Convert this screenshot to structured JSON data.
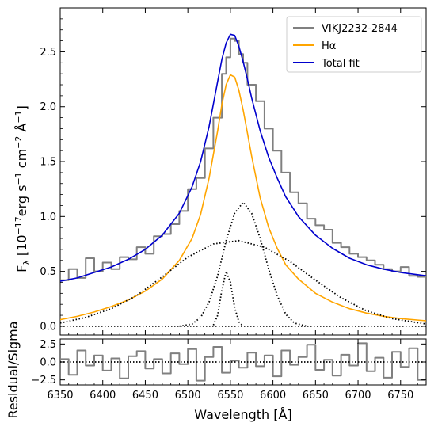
{
  "chart_data": [
    {
      "panel": "main",
      "type": "line",
      "ylabel": "F_λ [10^-17 erg s^-1 cm^-2 Å^-1]",
      "ylabel_parts": {
        "base": "F",
        "sub": "λ",
        "bracket_open": " [10",
        "exp1": "−17",
        "mid1": "erg s",
        "exp2": "−1",
        "mid2": " cm",
        "exp3": "−2",
        "mid3": " Å",
        "exp4": "−1",
        "bracket_close": "]"
      },
      "xlim": [
        6350,
        6780
      ],
      "ylim": [
        -0.08,
        2.9
      ],
      "yticks": [
        0.0,
        0.5,
        1.0,
        1.5,
        2.0,
        2.5
      ],
      "ytick_labels": [
        "0.0",
        "0.5",
        "1.0",
        "1.5",
        "2.0",
        "2.5"
      ],
      "legend_position": "top-right",
      "legend": [
        {
          "label": "VIKJ2232-2844",
          "color": "#808080"
        },
        {
          "label": "Hα",
          "color": "#ffa500"
        },
        {
          "label": "Total fit",
          "color": "#0000cd"
        }
      ],
      "series": [
        {
          "name": "VIKJ2232-2844",
          "style": "step",
          "color": "#808080",
          "x": [
            6350,
            6360,
            6370,
            6380,
            6390,
            6400,
            6410,
            6420,
            6430,
            6440,
            6450,
            6460,
            6470,
            6480,
            6490,
            6500,
            6510,
            6520,
            6530,
            6540,
            6545,
            6550,
            6555,
            6560,
            6565,
            6570,
            6580,
            6590,
            6600,
            6610,
            6620,
            6630,
            6640,
            6650,
            6660,
            6670,
            6680,
            6690,
            6700,
            6710,
            6720,
            6730,
            6740,
            6750,
            6760,
            6770,
            6780
          ],
          "y": [
            0.42,
            0.52,
            0.44,
            0.62,
            0.5,
            0.58,
            0.52,
            0.63,
            0.61,
            0.72,
            0.66,
            0.82,
            0.84,
            0.93,
            1.05,
            1.25,
            1.35,
            1.62,
            1.9,
            2.3,
            2.45,
            2.62,
            2.6,
            2.48,
            2.4,
            2.2,
            2.05,
            1.8,
            1.6,
            1.4,
            1.22,
            1.12,
            0.98,
            0.92,
            0.88,
            0.76,
            0.72,
            0.66,
            0.63,
            0.6,
            0.56,
            0.52,
            0.5,
            0.54,
            0.46,
            0.45,
            0.46
          ]
        },
        {
          "name": "Hα",
          "style": "line",
          "color": "#ffa500",
          "x": [
            6350,
            6370,
            6390,
            6410,
            6430,
            6450,
            6470,
            6490,
            6505,
            6515,
            6525,
            6535,
            6540,
            6545,
            6550,
            6555,
            6560,
            6565,
            6570,
            6575,
            6585,
            6595,
            6605,
            6615,
            6630,
            6650,
            6670,
            6690,
            6710,
            6730,
            6750,
            6780
          ],
          "y": [
            0.06,
            0.09,
            0.13,
            0.18,
            0.24,
            0.32,
            0.43,
            0.6,
            0.8,
            1.02,
            1.35,
            1.78,
            2.02,
            2.2,
            2.29,
            2.27,
            2.15,
            1.97,
            1.76,
            1.55,
            1.17,
            0.9,
            0.71,
            0.56,
            0.43,
            0.3,
            0.22,
            0.16,
            0.12,
            0.09,
            0.07,
            0.05
          ]
        },
        {
          "name": "Total fit",
          "style": "line",
          "color": "#0000cd",
          "x": [
            6350,
            6370,
            6390,
            6410,
            6430,
            6450,
            6470,
            6490,
            6505,
            6515,
            6525,
            6535,
            6540,
            6545,
            6550,
            6555,
            6560,
            6565,
            6570,
            6575,
            6585,
            6595,
            6605,
            6615,
            6630,
            6650,
            6670,
            6690,
            6710,
            6730,
            6750,
            6780
          ],
          "y": [
            0.41,
            0.44,
            0.49,
            0.54,
            0.61,
            0.7,
            0.83,
            1.03,
            1.27,
            1.5,
            1.82,
            2.23,
            2.43,
            2.58,
            2.66,
            2.65,
            2.55,
            2.41,
            2.25,
            2.08,
            1.78,
            1.54,
            1.35,
            1.18,
            1.0,
            0.83,
            0.71,
            0.62,
            0.56,
            0.52,
            0.49,
            0.46
          ]
        },
        {
          "style": "dotted",
          "color": "#000000",
          "x": [
            6530,
            6535,
            6540,
            6545,
            6550,
            6555,
            6560,
            6565
          ],
          "y": [
            0.01,
            0.1,
            0.33,
            0.5,
            0.4,
            0.17,
            0.04,
            0.0
          ]
        },
        {
          "style": "dotted",
          "color": "#000000",
          "x": [
            6490,
            6505,
            6515,
            6525,
            6535,
            6545,
            6555,
            6565,
            6575,
            6585,
            6595,
            6605,
            6615,
            6625,
            6640
          ],
          "y": [
            0.0,
            0.02,
            0.08,
            0.22,
            0.46,
            0.78,
            1.03,
            1.13,
            1.03,
            0.8,
            0.52,
            0.28,
            0.11,
            0.03,
            0.0
          ]
        },
        {
          "style": "dotted",
          "color": "#000000",
          "x": [
            6350,
            6380,
            6410,
            6440,
            6470,
            6500,
            6530,
            6560,
            6590,
            6620,
            6650,
            6680,
            6710,
            6740,
            6780
          ],
          "y": [
            0.03,
            0.08,
            0.16,
            0.28,
            0.45,
            0.63,
            0.75,
            0.78,
            0.72,
            0.59,
            0.42,
            0.26,
            0.14,
            0.07,
            0.02
          ]
        },
        {
          "style": "dotted",
          "color": "#000000",
          "x": [
            6350,
            6780
          ],
          "y": [
            0.0,
            0.0
          ]
        }
      ]
    },
    {
      "panel": "residual",
      "type": "line",
      "xlabel": "Wavelength [Å]",
      "ylabel": "Residual/Sigma",
      "xlim": [
        6350,
        6780
      ],
      "ylim": [
        -3.2,
        3.2
      ],
      "xticks": [
        6350,
        6400,
        6450,
        6500,
        6550,
        6600,
        6650,
        6700,
        6750
      ],
      "xtick_labels": [
        "6350",
        "6400",
        "6450",
        "6500",
        "6550",
        "6600",
        "6650",
        "6700",
        "6750"
      ],
      "yticks": [
        -2.5,
        0.0,
        2.5
      ],
      "ytick_labels": [
        "−2.5",
        "0.0",
        "2.5"
      ],
      "series": [
        {
          "style": "step",
          "color": "#808080",
          "x": [
            6350,
            6360,
            6370,
            6380,
            6390,
            6400,
            6410,
            6420,
            6430,
            6440,
            6450,
            6460,
            6470,
            6480,
            6490,
            6500,
            6510,
            6520,
            6530,
            6540,
            6550,
            6560,
            6570,
            6580,
            6590,
            6600,
            6610,
            6620,
            6630,
            6640,
            6650,
            6660,
            6670,
            6680,
            6690,
            6700,
            6710,
            6720,
            6730,
            6740,
            6750,
            6760,
            6770,
            6780
          ],
          "y": [
            0.4,
            -1.8,
            1.6,
            -0.5,
            0.9,
            -1.2,
            0.5,
            -2.3,
            0.8,
            1.5,
            -0.9,
            0.4,
            -1.6,
            1.2,
            -0.3,
            1.8,
            -2.6,
            0.7,
            2.1,
            -1.5,
            0.2,
            -0.8,
            1.3,
            -0.6,
            0.9,
            -2.0,
            1.6,
            -0.4,
            0.7,
            2.4,
            -1.1,
            0.3,
            -1.9,
            1.0,
            -0.5,
            2.6,
            -1.3,
            0.6,
            -2.2,
            1.4,
            -0.7,
            1.9,
            -2.5,
            0.5
          ]
        },
        {
          "style": "dotted",
          "color": "#000000",
          "x": [
            6350,
            6780
          ],
          "y": [
            0.0,
            0.0
          ]
        }
      ]
    }
  ]
}
